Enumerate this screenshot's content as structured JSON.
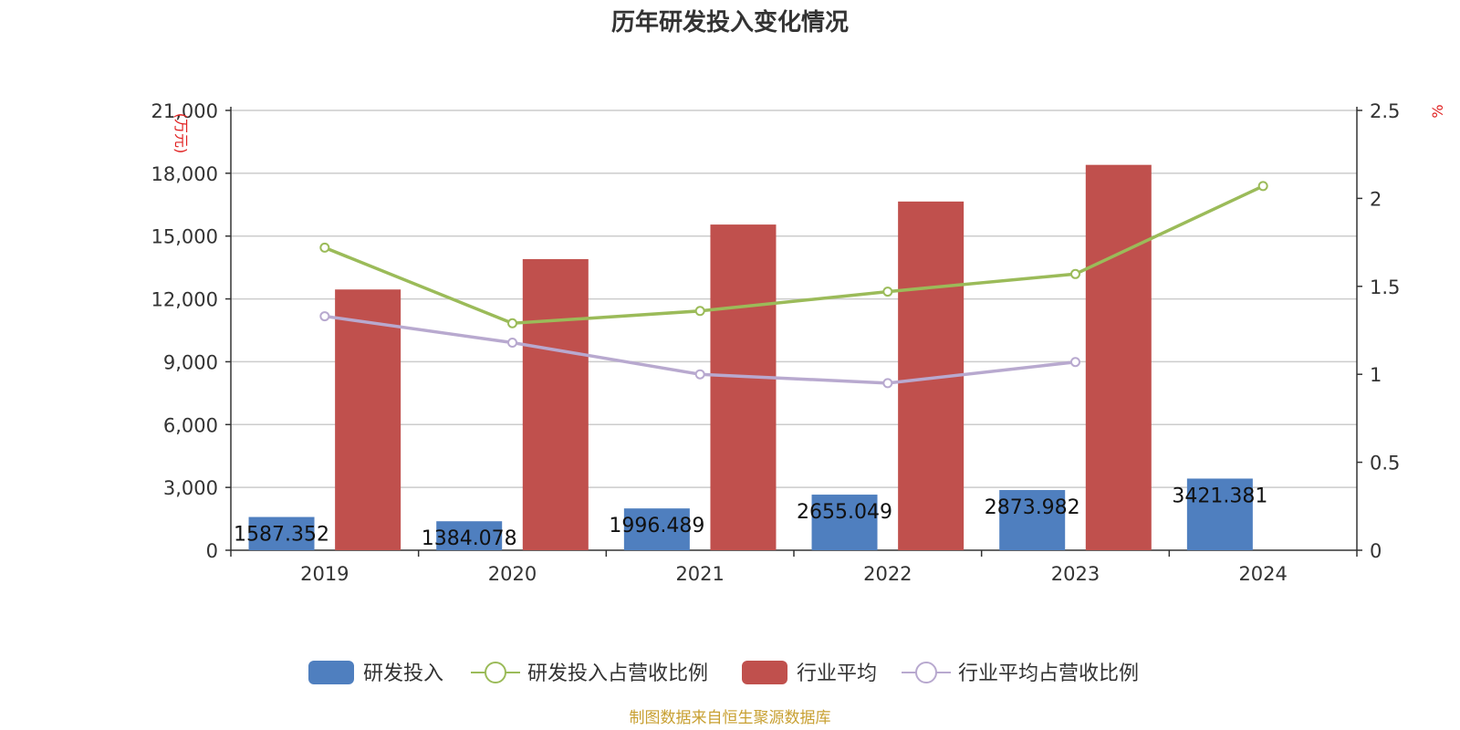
{
  "chart_data": {
    "type": "bar",
    "title": "历年研发投入变化情况",
    "categories": [
      "2019",
      "2020",
      "2021",
      "2022",
      "2023",
      "2024"
    ],
    "y_left": {
      "unit": "(万元)",
      "min": 0,
      "max": 21000,
      "ticks": [
        "0",
        "3,000",
        "6,000",
        "9,000",
        "12,000",
        "15,000",
        "18,000",
        "21,000"
      ]
    },
    "y_right": {
      "unit": "%",
      "min": 0,
      "max": 2.5,
      "ticks": [
        "0",
        "0.5",
        "1",
        "1.5",
        "2",
        "2.5"
      ]
    },
    "grid": true,
    "legend_position": "bottom",
    "series": [
      {
        "name": "研发投入",
        "kind": "bar",
        "axis": "left",
        "color": "#4f7fbf",
        "values": [
          1587.352,
          1384.078,
          1996.489,
          2655.049,
          2873.982,
          3421.381
        ],
        "labels": [
          "1587.352",
          "1384.078",
          "1996.489",
          "2655.049",
          "2873.982",
          "3421.381"
        ]
      },
      {
        "name": "研发投入占营收比例",
        "kind": "line",
        "axis": "right",
        "color": "#9bbb59",
        "values": [
          1.72,
          1.29,
          1.36,
          1.47,
          1.57,
          2.07
        ]
      },
      {
        "name": "行业平均",
        "kind": "bar",
        "axis": "left",
        "color": "#c0504d",
        "values": [
          12450,
          13900,
          15550,
          16650,
          18400,
          null
        ]
      },
      {
        "name": "行业平均占营收比例",
        "kind": "line",
        "axis": "right",
        "color": "#b8a9cf",
        "values": [
          1.33,
          1.18,
          1.0,
          0.95,
          1.07,
          null
        ]
      }
    ],
    "source": "制图数据来自恒生聚源数据库"
  }
}
